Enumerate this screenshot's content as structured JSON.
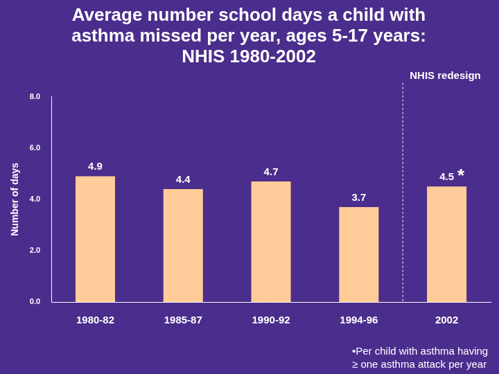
{
  "chart_data": {
    "type": "bar",
    "title": "Average number school days a child with\nasthma missed per year, ages 5-17 years:\nNHIS 1980-2002",
    "y_label": "Number of days",
    "categories": [
      "1980-82",
      "1985-87",
      "1990-92",
      "1994-96",
      "2002"
    ],
    "values": [
      4.9,
      4.4,
      4.7,
      3.7,
      4.5
    ],
    "color": "#ffcc99",
    "ylim": [
      0,
      8
    ],
    "yticks": [
      {
        "value": 0,
        "label": "0.0"
      },
      {
        "value": 2,
        "label": "2.0"
      },
      {
        "value": 4,
        "label": "4.0"
      },
      {
        "value": 6,
        "label": "6.0"
      },
      {
        "value": 8,
        "label": "8.0"
      }
    ],
    "grid": false,
    "data_labels": true,
    "annotations": [
      "NHIS redesign",
      "*",
      "•Per child with asthma having ≥ one asthma attack per year"
    ]
  }
}
